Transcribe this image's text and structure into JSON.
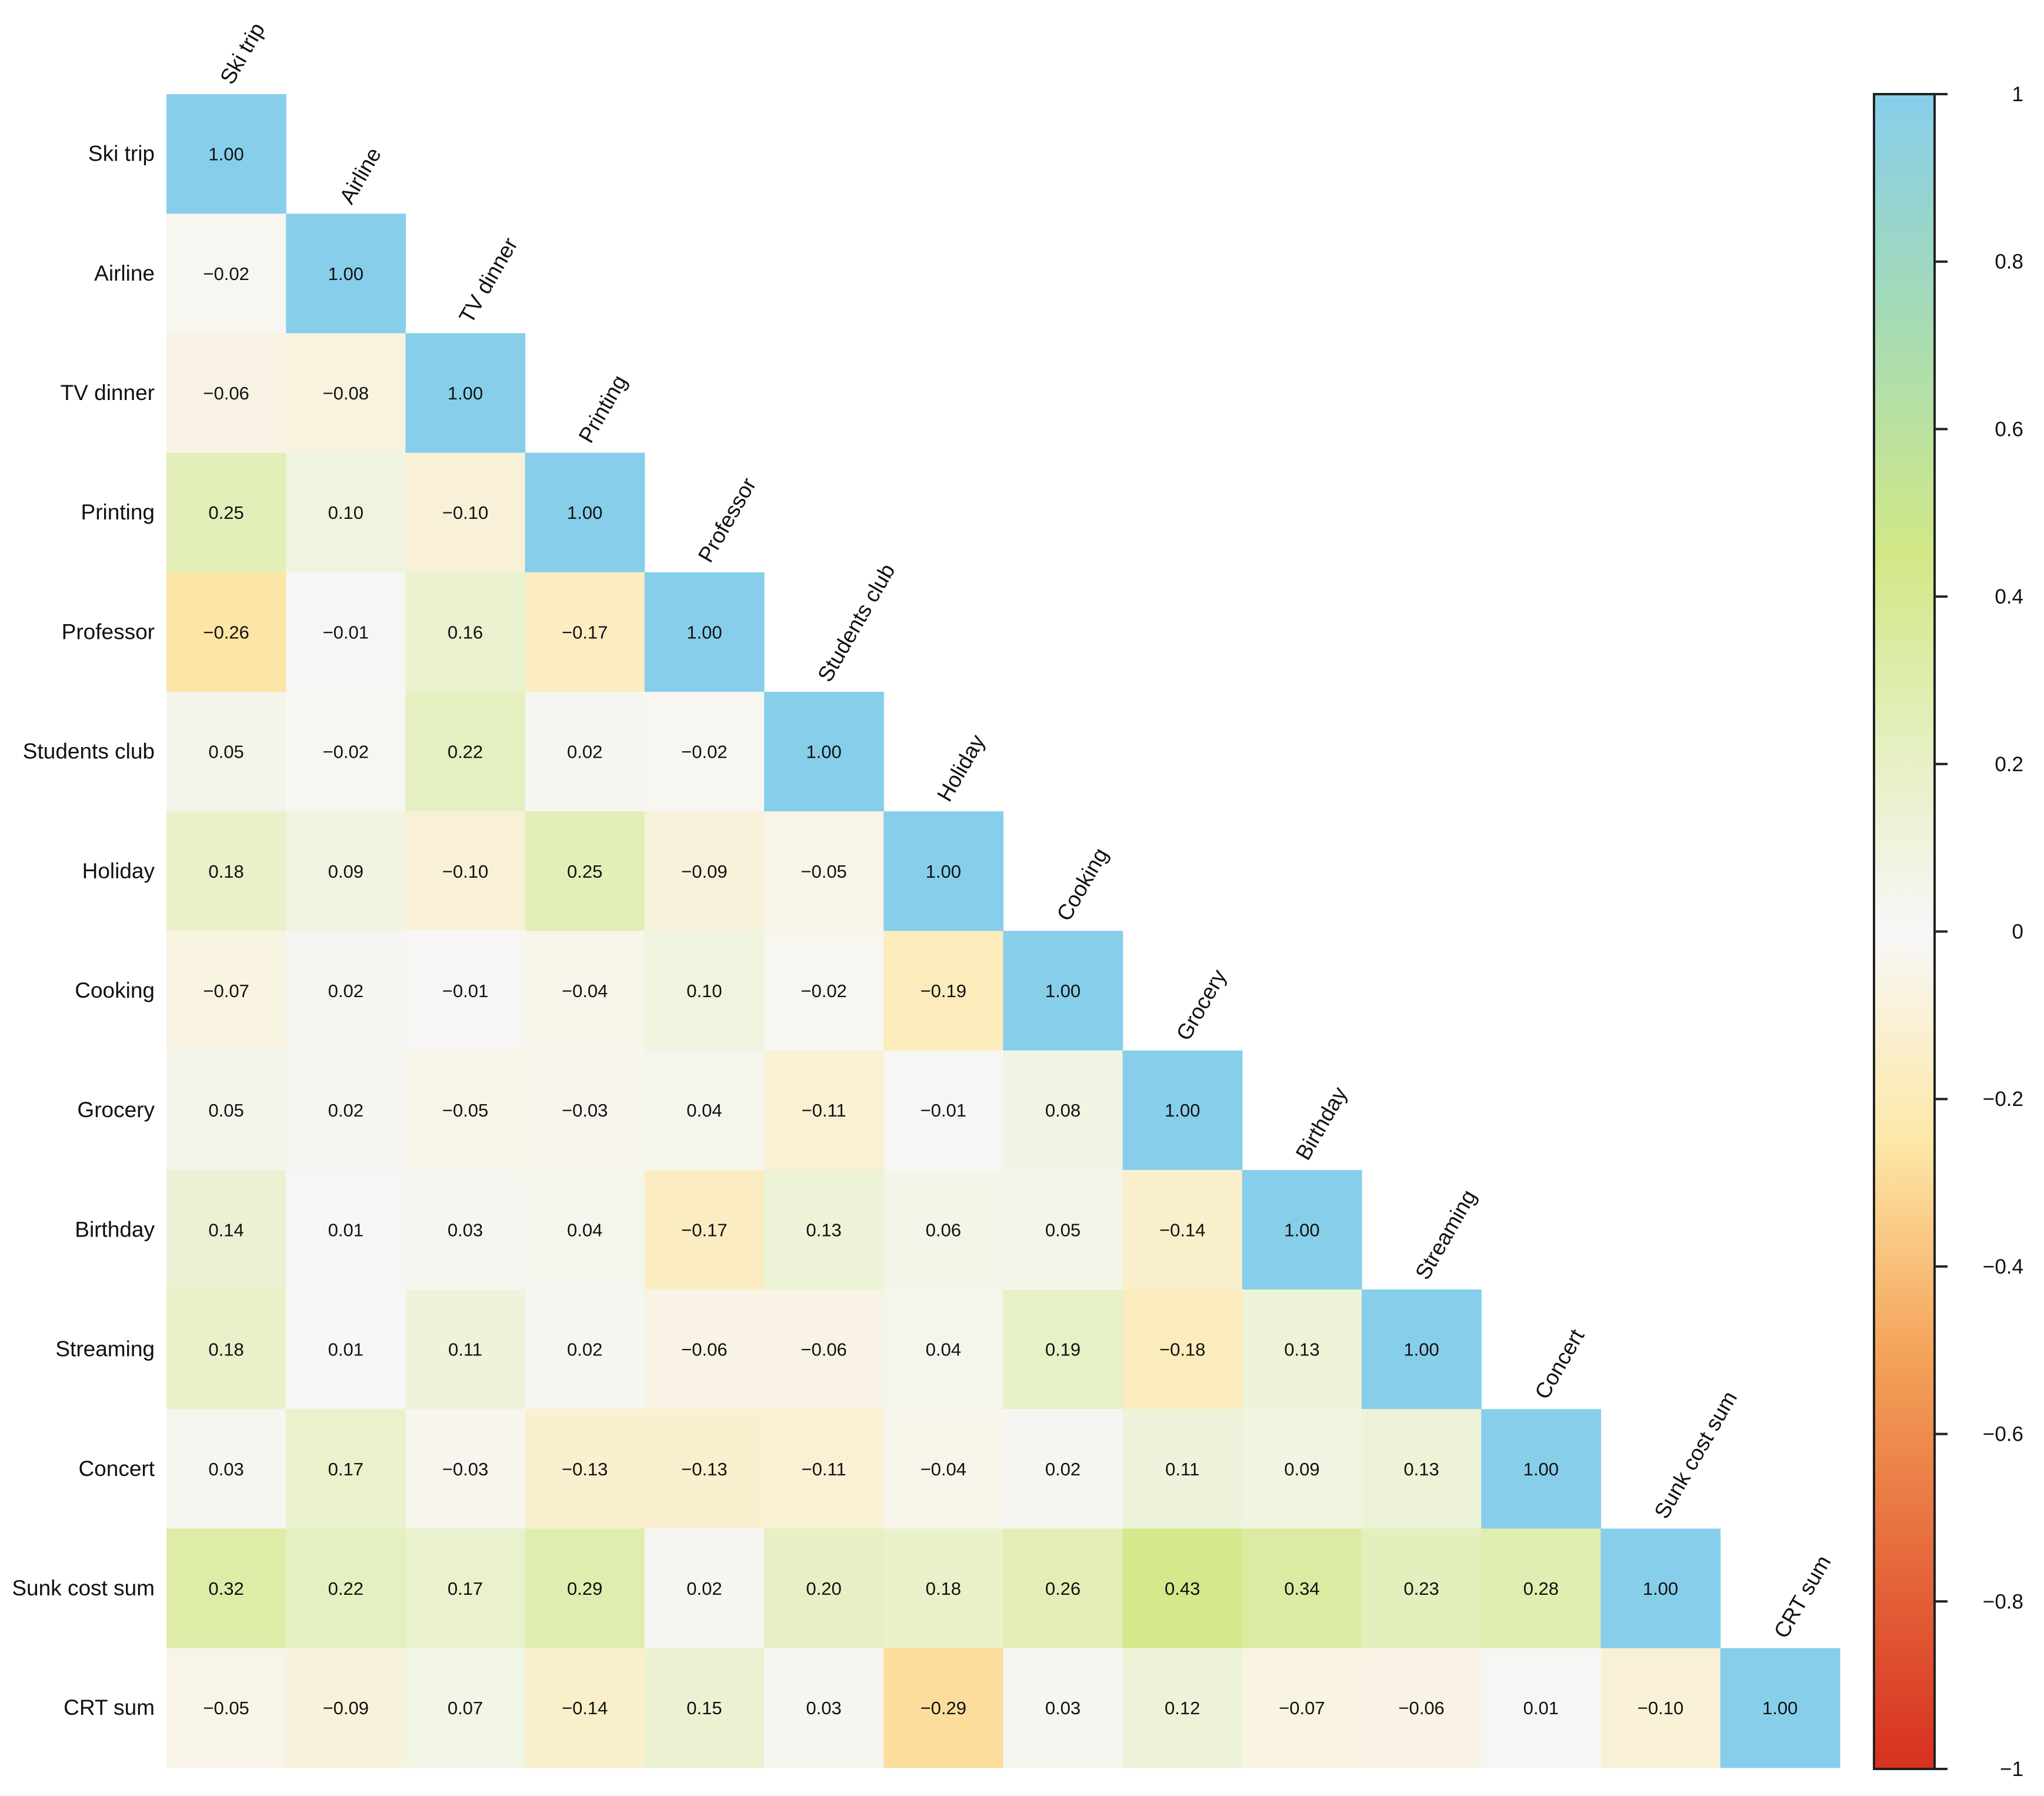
{
  "chart_data": {
    "type": "heatmap",
    "variables": [
      "Ski trip",
      "Airline",
      "TV dinner",
      "Printing",
      "Professor",
      "Students club",
      "Holiday",
      "Cooking",
      "Grocery",
      "Birthday",
      "Streaming",
      "Concert",
      "Sunk cost sum",
      "CRT sum"
    ],
    "values": [
      [
        1.0
      ],
      [
        -0.02,
        1.0
      ],
      [
        -0.06,
        -0.08,
        1.0
      ],
      [
        0.25,
        0.1,
        -0.1,
        1.0
      ],
      [
        -0.26,
        -0.01,
        0.16,
        -0.17,
        1.0
      ],
      [
        0.05,
        -0.02,
        0.22,
        0.02,
        -0.02,
        1.0
      ],
      [
        0.18,
        0.09,
        -0.1,
        0.25,
        -0.09,
        -0.05,
        1.0
      ],
      [
        -0.07,
        0.02,
        -0.01,
        -0.04,
        0.1,
        -0.02,
        -0.19,
        1.0
      ],
      [
        0.05,
        0.02,
        -0.05,
        -0.03,
        0.04,
        -0.11,
        -0.01,
        0.08,
        1.0
      ],
      [
        0.14,
        0.01,
        0.03,
        0.04,
        -0.17,
        0.13,
        0.06,
        0.05,
        -0.14,
        1.0
      ],
      [
        0.18,
        0.01,
        0.11,
        0.02,
        -0.06,
        -0.06,
        0.04,
        0.19,
        -0.18,
        0.13,
        1.0
      ],
      [
        0.03,
        0.17,
        -0.03,
        -0.13,
        -0.13,
        -0.11,
        -0.04,
        0.02,
        0.11,
        0.09,
        0.13,
        1.0
      ],
      [
        0.32,
        0.22,
        0.17,
        0.29,
        0.02,
        0.2,
        0.18,
        0.26,
        0.43,
        0.34,
        0.23,
        0.28,
        1.0
      ],
      [
        -0.05,
        -0.09,
        0.07,
        -0.14,
        0.15,
        0.03,
        -0.29,
        0.03,
        0.12,
        -0.07,
        -0.06,
        0.01,
        -0.1,
        1.0
      ]
    ],
    "diagonal_color": "#87CEEB",
    "colorbar": {
      "range": [
        -1,
        1
      ],
      "ticks": [
        1,
        0.8,
        0.6,
        0.4,
        0.2,
        0,
        -0.2,
        -0.4,
        -0.6,
        -0.8,
        -1
      ],
      "tick_labels": [
        "1",
        "0.8",
        "0.6",
        "0.4",
        "0.2",
        "0",
        "−0.2",
        "−0.4",
        "−0.6",
        "−0.8",
        "−1"
      ],
      "stops": [
        {
          "v": -1.0,
          "color": "#d7301f"
        },
        {
          "v": -0.5,
          "color": "#f4a45a"
        },
        {
          "v": -0.25,
          "color": "#fde8a8"
        },
        {
          "v": 0.0,
          "color": "#f7f7f7"
        },
        {
          "v": 0.45,
          "color": "#d2e887"
        },
        {
          "v": 0.75,
          "color": "#a3dab8"
        },
        {
          "v": 1.0,
          "color": "#87CEEB"
        }
      ]
    }
  }
}
